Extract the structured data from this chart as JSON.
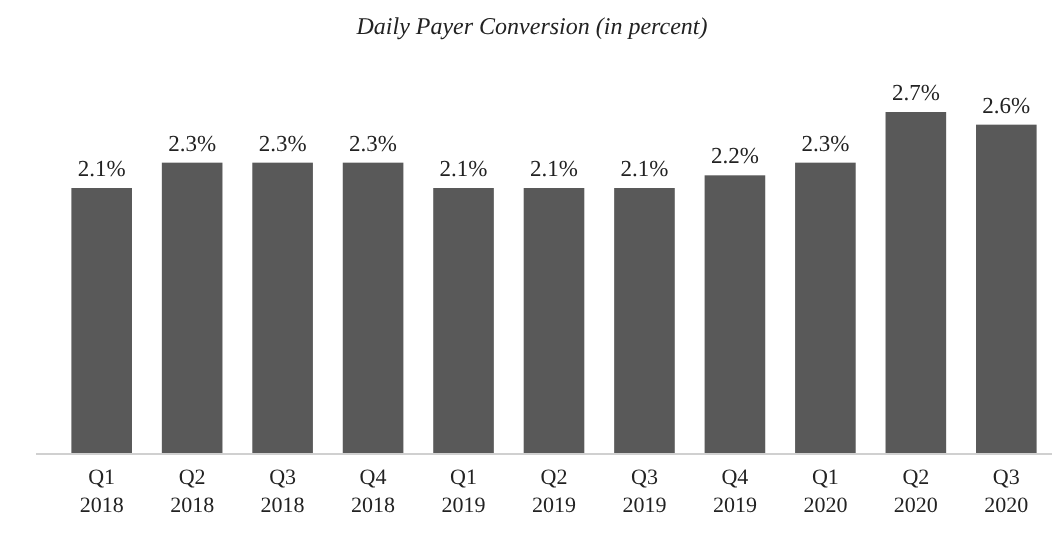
{
  "chart_data": {
    "type": "bar",
    "title": "Daily Payer Conversion (in percent)",
    "categories": [
      "Q1 2018",
      "Q2 2018",
      "Q3 2018",
      "Q4 2018",
      "Q1 2019",
      "Q2 2019",
      "Q3 2019",
      "Q4 2019",
      "Q1 2020",
      "Q2 2020",
      "Q3 2020"
    ],
    "values": [
      2.1,
      2.3,
      2.3,
      2.3,
      2.1,
      2.1,
      2.1,
      2.2,
      2.3,
      2.7,
      2.6
    ],
    "value_labels": [
      "2.1%",
      "2.3%",
      "2.3%",
      "2.3%",
      "2.1%",
      "2.1%",
      "2.1%",
      "2.2%",
      "2.3%",
      "2.7%",
      "2.6%"
    ],
    "color": "#595959"
  }
}
